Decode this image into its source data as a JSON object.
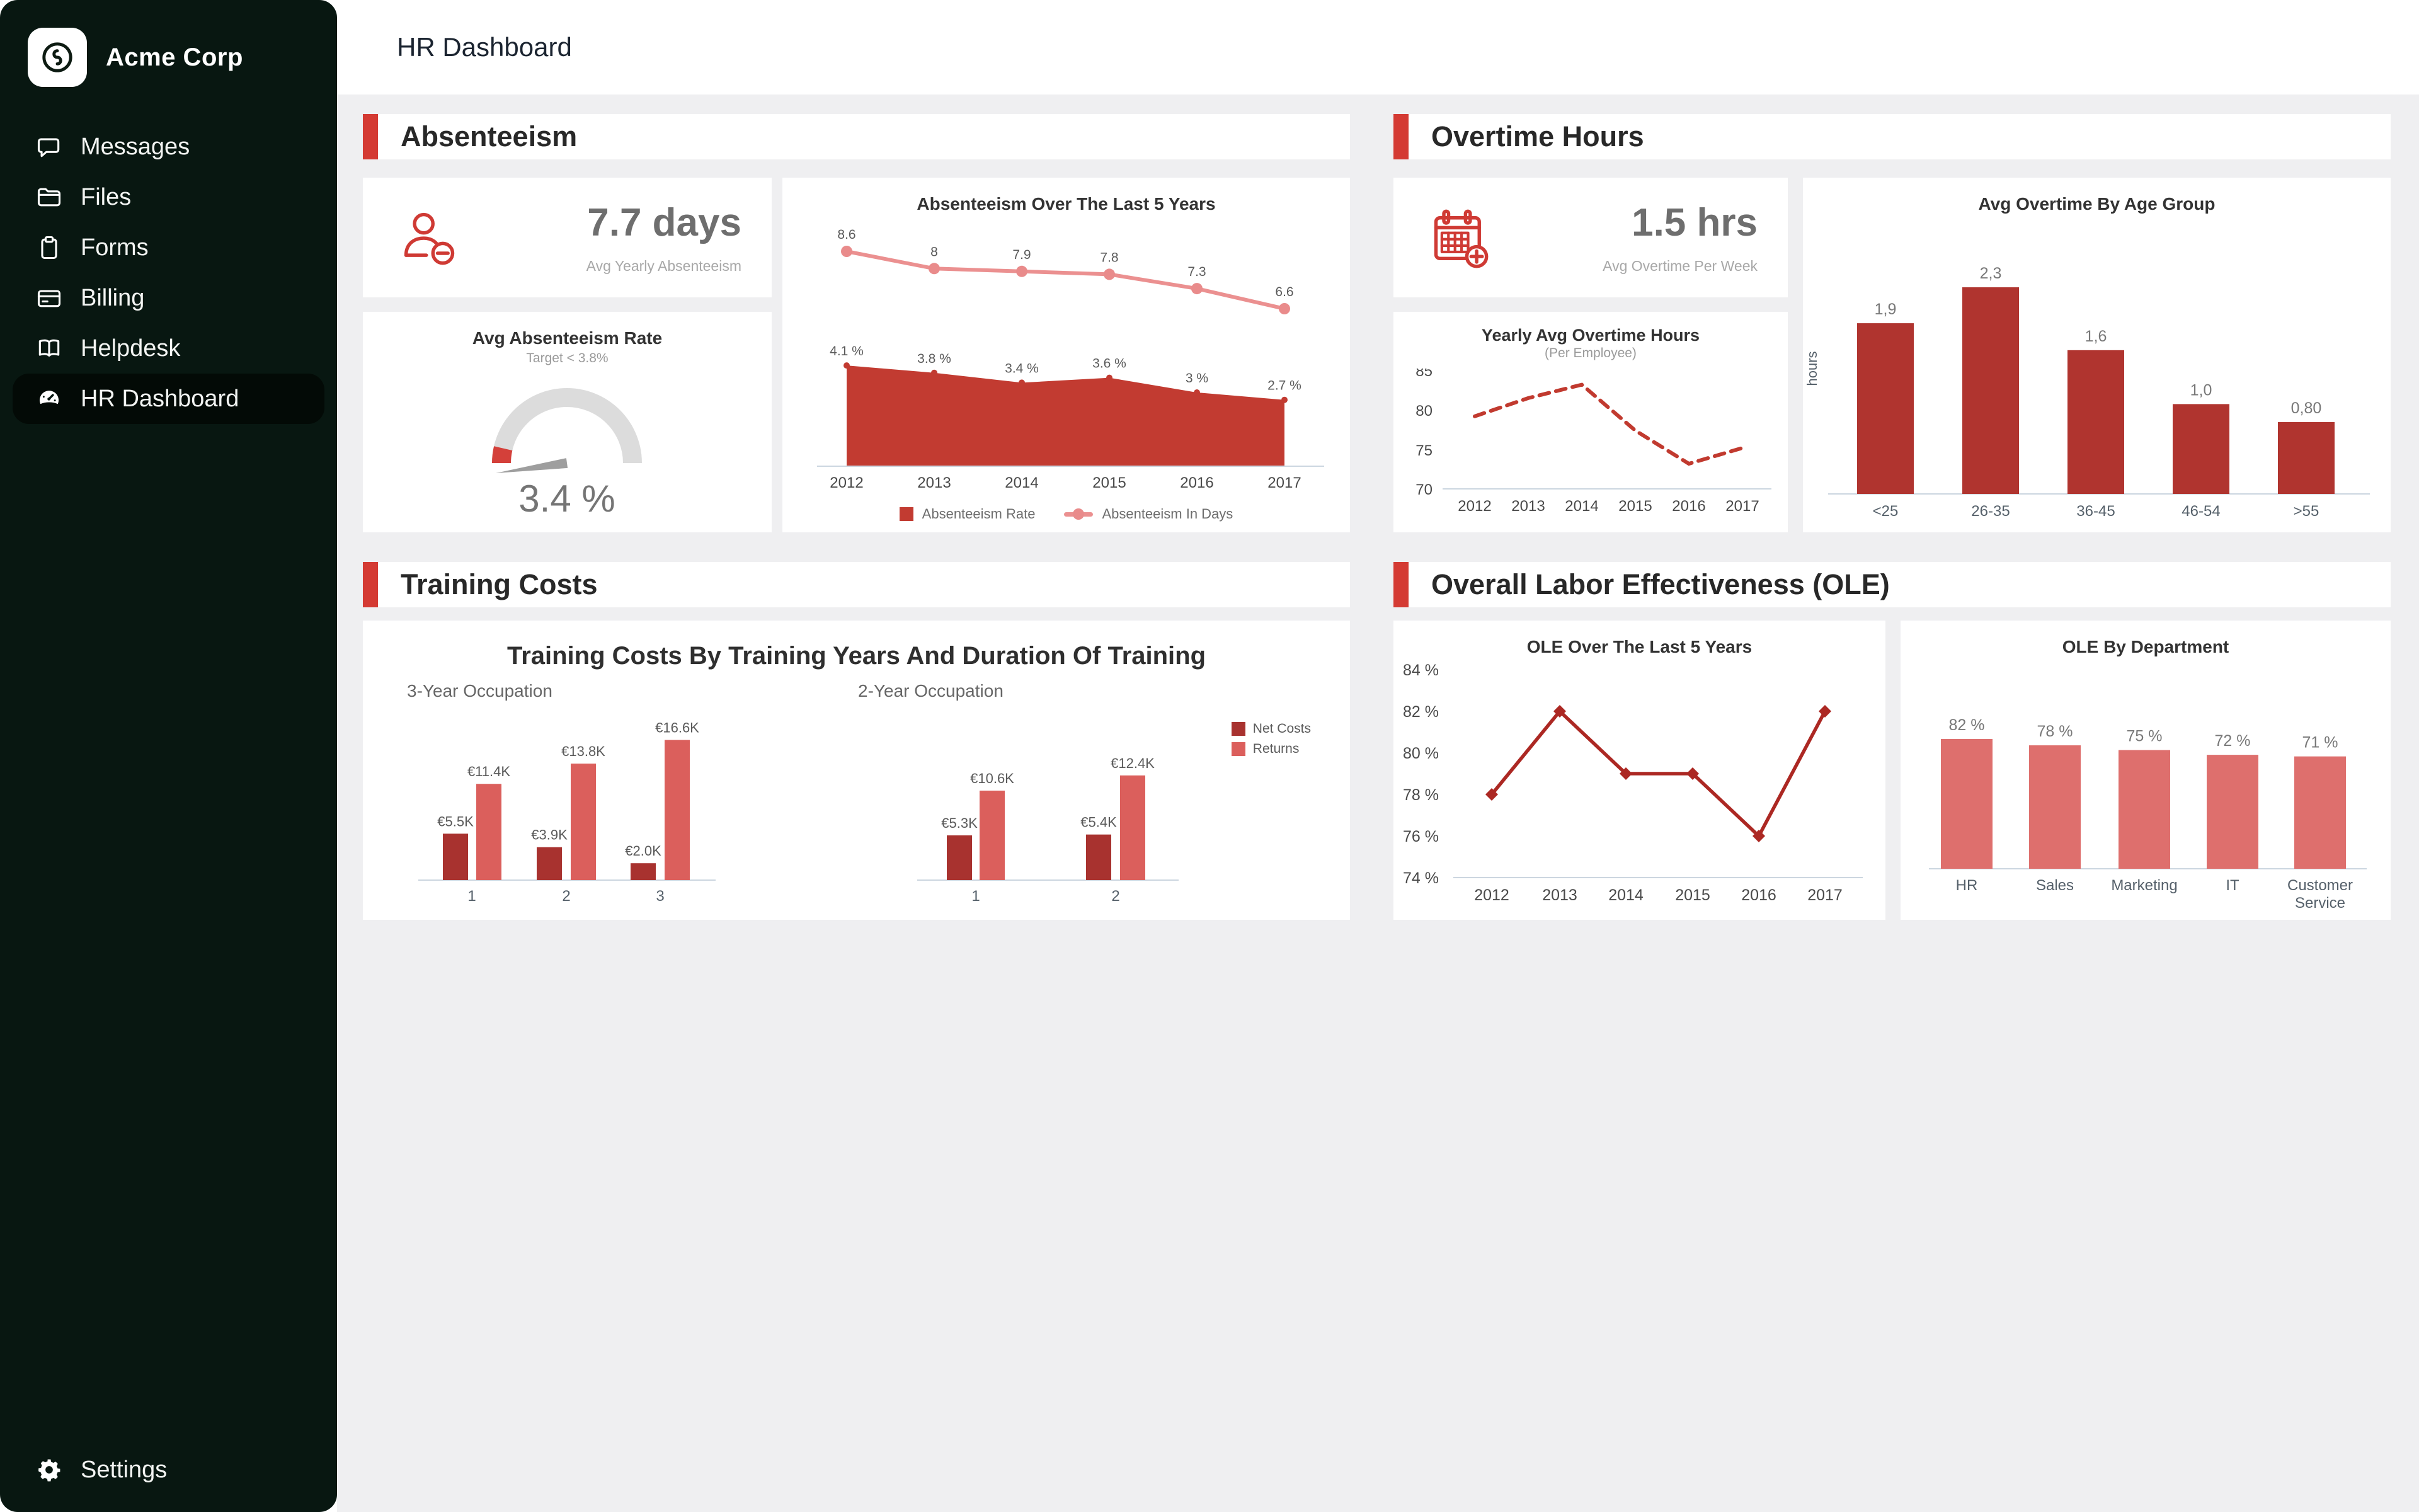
{
  "app": {
    "company": "Acme Corp",
    "page_title": "HR Dashboard"
  },
  "sidebar": {
    "items": [
      {
        "label": "Messages",
        "icon": "chat-icon"
      },
      {
        "label": "Files",
        "icon": "folder-icon"
      },
      {
        "label": "Forms",
        "icon": "clipboard-icon"
      },
      {
        "label": "Billing",
        "icon": "credit-card-icon"
      },
      {
        "label": "Helpdesk",
        "icon": "book-icon"
      },
      {
        "label": "HR Dashboard",
        "icon": "speedometer-icon",
        "active": true
      }
    ],
    "settings_label": "Settings"
  },
  "panels": {
    "absenteeism": {
      "title": "Absenteeism",
      "stat": {
        "value": "7.7 days",
        "caption": "Avg Yearly Absenteeism"
      }
    },
    "overtime": {
      "title": "Overtime Hours",
      "stat": {
        "value": "1.5 hrs",
        "caption": "Avg Overtime Per Week"
      }
    },
    "training": {
      "title": "Training Costs"
    },
    "ole": {
      "title": "Overall Labor Effectiveness (OLE)"
    }
  },
  "colors": {
    "accent_red": "#d43a33",
    "area_red": "#c23b31",
    "days_line_pink": "#eb9090",
    "dashed_line_red": "#c13a2f",
    "age_bar_red": "#b0342f",
    "net_costs_red": "#a8322f",
    "returns_red": "#db5f5c",
    "ole_line_red": "#ac2823",
    "ole_dept_salmon": "#de6f6d",
    "sidebar_bg": "#081711",
    "sidebar_active_bg": "#030a06"
  },
  "chart_data": [
    {
      "id": "absenteeism_trend",
      "type": "area",
      "title": "Absenteeism Over The Last 5 Years",
      "x": [
        "2012",
        "2013",
        "2014",
        "2015",
        "2016",
        "2017"
      ],
      "series": [
        {
          "name": "Absenteeism Rate",
          "type": "area",
          "color": "#c23b31",
          "values": [
            4.1,
            3.8,
            3.4,
            3.6,
            3.0,
            2.7
          ],
          "labels": [
            "4.1 %",
            "3.8 %",
            "3.4 %",
            "3.6 %",
            "3 %",
            "2.7 %"
          ]
        },
        {
          "name": "Absenteeism In Days",
          "type": "line",
          "color": "#eb9090",
          "values": [
            8.6,
            8,
            7.9,
            7.8,
            7.3,
            6.6
          ],
          "labels": [
            "8.6",
            "8",
            "7.9",
            "7.8",
            "7.3",
            "6.6"
          ]
        }
      ],
      "legend_position": "bottom",
      "grid": false
    },
    {
      "id": "absenteeism_gauge",
      "type": "gauge",
      "title": "Avg Absenteeism Rate",
      "subtitle": "Target < 3.8%",
      "value": 3.4,
      "value_label": "3.4 %",
      "target": 3.8
    },
    {
      "id": "overtime_yearly",
      "type": "line",
      "title": "Yearly Avg Overtime Hours",
      "subtitle": "(Per Employee)",
      "x": [
        "2012",
        "2013",
        "2014",
        "2015",
        "2016",
        "2017"
      ],
      "y_ticks": [
        85,
        80,
        75,
        70
      ],
      "ylim": [
        70,
        85
      ],
      "values": [
        79.2,
        81.5,
        83.2,
        77.4,
        73.2,
        75.2
      ],
      "style": "dashed",
      "color": "#c13a2f",
      "grid": false
    },
    {
      "id": "overtime_age",
      "type": "bar",
      "title": "Avg Overtime By Age Group",
      "ylabel": "hours",
      "categories": [
        "<25",
        "26-35",
        "36-45",
        "46-54",
        ">55"
      ],
      "values": [
        1.9,
        2.3,
        1.6,
        1.0,
        0.8
      ],
      "labels": [
        "1,9",
        "2,3",
        "1,6",
        "1,0",
        "0,80"
      ],
      "color": "#b0342f"
    },
    {
      "id": "training_costs",
      "type": "bar",
      "title": "Training Costs By Training Years And Duration Of Training",
      "groups": [
        {
          "label": "3-Year Occupation",
          "categories": [
            "1",
            "2",
            "3"
          ],
          "series": [
            {
              "name": "Net Costs",
              "values": [
                5.5,
                3.9,
                2.0
              ],
              "labels": [
                "€5.5K",
                "€3.9K",
                "€2.0K"
              ]
            },
            {
              "name": "Returns",
              "values": [
                11.4,
                13.8,
                16.6
              ],
              "labels": [
                "€11.4K",
                "€13.8K",
                "€16.6K"
              ]
            }
          ]
        },
        {
          "label": "2-Year Occupation",
          "categories": [
            "1",
            "2"
          ],
          "series": [
            {
              "name": "Net Costs",
              "values": [
                5.3,
                5.4
              ],
              "labels": [
                "€5.3K",
                "€5.4K"
              ]
            },
            {
              "name": "Returns",
              "values": [
                10.6,
                12.4
              ],
              "labels": [
                "€10.6K",
                "€12.4K"
              ]
            }
          ]
        }
      ],
      "legend": [
        {
          "name": "Net Costs",
          "color": "#a8322f"
        },
        {
          "name": "Returns",
          "color": "#db5f5c"
        }
      ],
      "legend_position": "right"
    },
    {
      "id": "ole_trend",
      "type": "line",
      "title": "OLE Over The Last 5 Years",
      "x": [
        "2012",
        "2013",
        "2014",
        "2015",
        "2016",
        "2017"
      ],
      "y_tick_labels": [
        "84 %",
        "82 %",
        "80 %",
        "78 %",
        "76 %",
        "74 %"
      ],
      "ylim": [
        74,
        84
      ],
      "values": [
        78,
        82,
        79,
        79,
        76,
        82
      ],
      "marker": "diamond",
      "color": "#ac2823",
      "grid": false
    },
    {
      "id": "ole_dept",
      "type": "bar",
      "title": "OLE By Department",
      "categories": [
        "HR",
        "Sales",
        "Marketing",
        "IT",
        "Customer Service"
      ],
      "values": [
        82,
        78,
        75,
        72,
        71
      ],
      "labels": [
        "82 %",
        "78 %",
        "75 %",
        "72 %",
        "71 %"
      ],
      "color": "#de6f6d"
    }
  ]
}
